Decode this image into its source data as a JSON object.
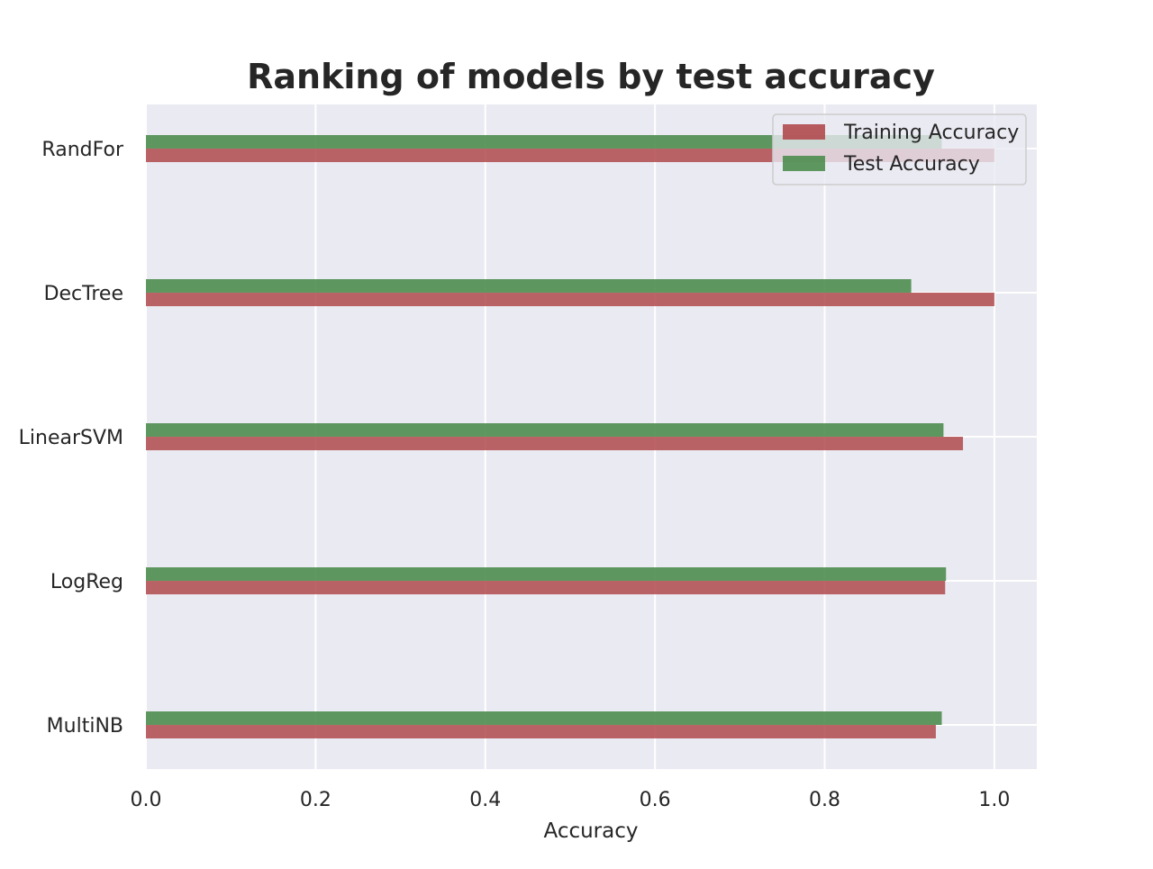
{
  "chart_data": {
    "type": "bar",
    "orientation": "horizontal",
    "title": "Ranking of models by test accuracy",
    "xlabel": "Accuracy",
    "ylabel": "",
    "xlim": [
      0,
      1.05
    ],
    "xticks": [
      "0.0",
      "0.2",
      "0.4",
      "0.6",
      "0.8",
      "1.0"
    ],
    "grid": true,
    "legend_position": "top-right",
    "categories": [
      "RandFor",
      "DecTree",
      "LinearSVM",
      "LogReg",
      "MultiNB"
    ],
    "series": [
      {
        "name": "Training Accuracy",
        "color": "#b04a4e",
        "values": [
          1.0,
          1.0,
          0.963,
          0.942,
          0.931
        ]
      },
      {
        "name": "Test Accuracy",
        "color": "#4e8d4f",
        "values": [
          0.938,
          0.902,
          0.94,
          0.943,
          0.938
        ]
      }
    ]
  }
}
